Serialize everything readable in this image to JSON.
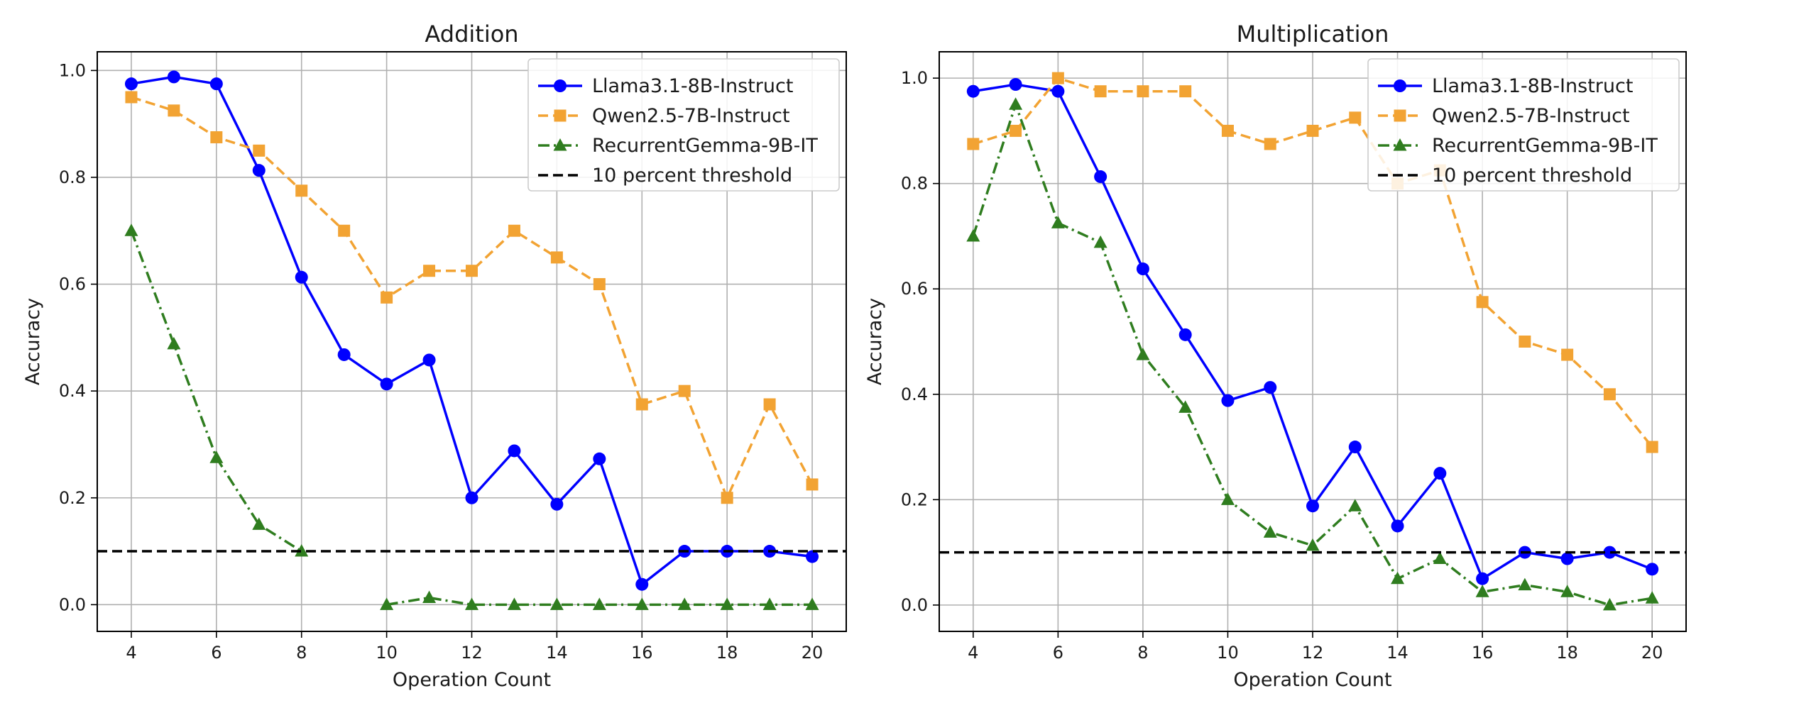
{
  "chart_data": [
    {
      "type": "line",
      "title": "Addition",
      "xlabel": "Operation Count",
      "ylabel": "Accuracy",
      "xlim": [
        3.2,
        20.8
      ],
      "ylim": [
        -0.05,
        1.035
      ],
      "xticks": [
        4,
        6,
        8,
        10,
        12,
        14,
        16,
        18,
        20
      ],
      "xtick_labels": [
        "4",
        "6",
        "8",
        "10",
        "12",
        "14",
        "16",
        "18",
        "20"
      ],
      "yticks": [
        0.0,
        0.2,
        0.4,
        0.6,
        0.8,
        1.0
      ],
      "ytick_labels": [
        "0.0",
        "0.2",
        "0.4",
        "0.6",
        "0.8",
        "1.0"
      ],
      "grid": true,
      "legend_position": "top-right",
      "series": [
        {
          "name": "Llama3.1-8B-Instruct",
          "color": "#0000ff",
          "style": "solid",
          "marker": "circle",
          "x": [
            4,
            5,
            6,
            7,
            8,
            9,
            10,
            11,
            12,
            13,
            14,
            15,
            16,
            17,
            18,
            19,
            20
          ],
          "y": [
            0.975,
            0.988,
            0.975,
            0.813,
            0.613,
            0.468,
            0.413,
            0.458,
            0.2,
            0.288,
            0.188,
            0.273,
            0.038,
            0.1,
            0.1,
            0.1,
            0.09
          ]
        },
        {
          "name": "Qwen2.5-7B-Instruct",
          "color": "#f2a333",
          "style": "dashed",
          "marker": "square",
          "x": [
            4,
            5,
            6,
            7,
            8,
            9,
            10,
            11,
            12,
            13,
            14,
            15,
            16,
            17,
            18,
            19,
            20
          ],
          "y": [
            0.95,
            0.925,
            0.875,
            0.85,
            0.775,
            0.7,
            0.575,
            0.625,
            0.625,
            0.7,
            0.65,
            0.6,
            0.375,
            0.4,
            0.2,
            0.375,
            0.225
          ]
        },
        {
          "name": "RecurrentGemma-9B-IT",
          "color": "#2f7d1f",
          "style": "dashdot",
          "marker": "triangle",
          "segments": [
            {
              "x": [
                4,
                5,
                6,
                7,
                8
              ],
              "y": [
                0.7,
                0.488,
                0.275,
                0.15,
                0.1
              ]
            },
            {
              "x": [
                10,
                11,
                12,
                13,
                14,
                15,
                16,
                17,
                18,
                19,
                20
              ],
              "y": [
                0.0,
                0.013,
                0.0,
                0.0,
                0.0,
                0.0,
                0.0,
                0.0,
                0.0,
                0.0,
                0.0
              ]
            }
          ]
        },
        {
          "name": "10 percent threshold",
          "color": "#000000",
          "style": "dashed",
          "marker": "none",
          "y_constant": 0.1
        }
      ]
    },
    {
      "type": "line",
      "title": "Multiplication",
      "xlabel": "Operation Count",
      "ylabel": "Accuracy",
      "xlim": [
        3.2,
        20.8
      ],
      "ylim": [
        -0.05,
        1.05
      ],
      "xticks": [
        4,
        6,
        8,
        10,
        12,
        14,
        16,
        18,
        20
      ],
      "xtick_labels": [
        "4",
        "6",
        "8",
        "10",
        "12",
        "14",
        "16",
        "18",
        "20"
      ],
      "yticks": [
        0.0,
        0.2,
        0.4,
        0.6,
        0.8,
        1.0
      ],
      "ytick_labels": [
        "0.0",
        "0.2",
        "0.4",
        "0.6",
        "0.8",
        "1.0"
      ],
      "grid": true,
      "legend_position": "top-right",
      "series": [
        {
          "name": "Llama3.1-8B-Instruct",
          "color": "#0000ff",
          "style": "solid",
          "marker": "circle",
          "x": [
            4,
            5,
            6,
            7,
            8,
            9,
            10,
            11,
            12,
            13,
            14,
            15,
            16,
            17,
            18,
            19,
            20
          ],
          "y": [
            0.975,
            0.988,
            0.975,
            0.813,
            0.638,
            0.513,
            0.388,
            0.413,
            0.188,
            0.3,
            0.15,
            0.25,
            0.05,
            0.1,
            0.088,
            0.1,
            0.068
          ]
        },
        {
          "name": "Qwen2.5-7B-Instruct",
          "color": "#f2a333",
          "style": "dashed",
          "marker": "square",
          "x": [
            4,
            5,
            6,
            7,
            8,
            9,
            10,
            11,
            12,
            13,
            14,
            15,
            16,
            17,
            18,
            19,
            20
          ],
          "y": [
            0.875,
            0.9,
            1.0,
            0.975,
            0.975,
            0.975,
            0.9,
            0.875,
            0.9,
            0.925,
            0.8,
            0.825,
            0.575,
            0.5,
            0.475,
            0.4,
            0.3
          ]
        },
        {
          "name": "RecurrentGemma-9B-IT",
          "color": "#2f7d1f",
          "style": "dashdot",
          "marker": "triangle",
          "x": [
            4,
            5,
            6,
            7,
            8,
            9,
            10,
            11,
            12,
            13,
            14,
            15,
            16,
            17,
            18,
            19,
            20
          ],
          "y": [
            0.7,
            0.95,
            0.725,
            0.688,
            0.475,
            0.375,
            0.2,
            0.138,
            0.113,
            0.188,
            0.05,
            0.088,
            0.025,
            0.038,
            0.025,
            0.0,
            0.013
          ]
        },
        {
          "name": "10 percent threshold",
          "color": "#000000",
          "style": "dashed",
          "marker": "none",
          "y_constant": 0.1
        }
      ]
    }
  ]
}
